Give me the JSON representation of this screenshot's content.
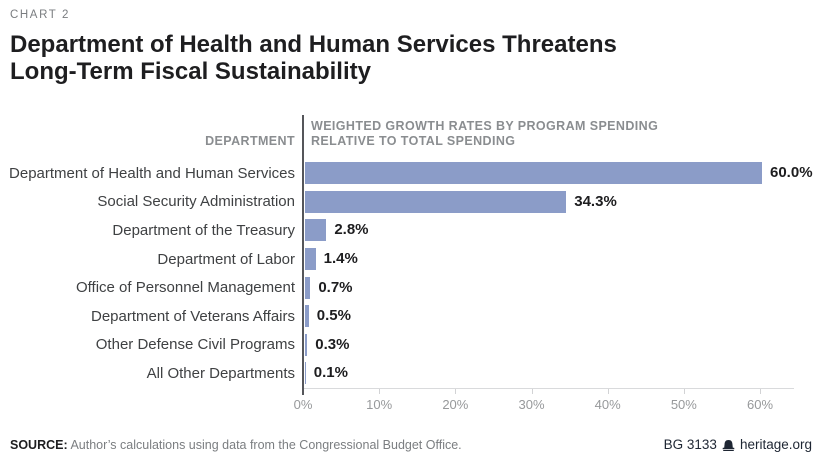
{
  "eyebrow": "CHART 2",
  "header": {
    "title_lines": [
      "Department of Health and Human Services Threatens",
      "Long-Term Fiscal Sustainability"
    ]
  },
  "chart_data": {
    "type": "bar",
    "orientation": "horizontal",
    "title": "Department of Health and Human Services Threatens Long-Term Fiscal Sustainability",
    "left_column_header": "DEPARTMENT",
    "axis_title_lines": [
      "WEIGHTED GROWTH RATES BY PROGRAM SPENDING",
      "RELATIVE TO TOTAL SPENDING"
    ],
    "categories": [
      "Department of Health and Human Services",
      "Social Security Administration",
      "Department of the Treasury",
      "Department of Labor",
      "Office of Personnel Management",
      "Department of Veterans Affairs",
      "Other Defense Civil Programs",
      "All Other Departments"
    ],
    "values": [
      60.0,
      34.3,
      2.8,
      1.4,
      0.7,
      0.5,
      0.3,
      0.1
    ],
    "value_labels": [
      "60.0%",
      "34.3%",
      "2.8%",
      "1.4%",
      "0.7%",
      "0.5%",
      "0.3%",
      "0.1%"
    ],
    "xlim": [
      0,
      60
    ],
    "x_tick_values": [
      0,
      10,
      20,
      30,
      40,
      50,
      60
    ],
    "x_tick_labels": [
      "0%",
      "10%",
      "20%",
      "30%",
      "40%",
      "50%",
      "60%"
    ],
    "bar_color": "#8b9cc8",
    "grid": false,
    "legend": "none"
  },
  "footer": {
    "source_label": "SOURCE:",
    "source_text": "Author’s calculations using data from the Congressional Budget Office.",
    "doc_id": "BG 3133",
    "site": "heritage.org",
    "logo_icon": "liberty-bell-icon"
  }
}
